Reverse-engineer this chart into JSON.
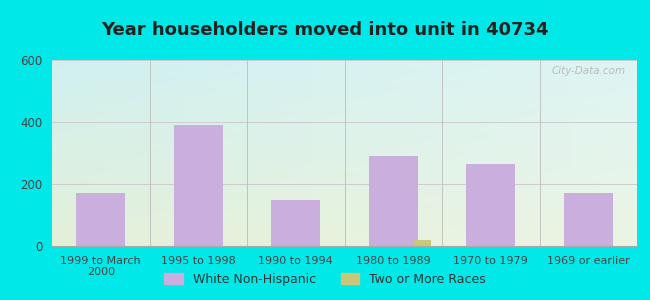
{
  "title": "Year householders moved into unit in 40734",
  "categories": [
    "1999 to March\n2000",
    "1995 to 1998",
    "1990 to 1994",
    "1980 to 1989",
    "1970 to 1979",
    "1969 or earlier"
  ],
  "white_non_hispanic": [
    170,
    390,
    150,
    290,
    265,
    170
  ],
  "two_or_more_races": [
    0,
    0,
    0,
    20,
    0,
    0
  ],
  "two_or_more_races_xoffset": 3,
  "bar_color_white": "#c9aede",
  "bar_color_two": "#c8c87a",
  "background_outer": "#00e8e8",
  "background_plot_top_left": "#cff0f0",
  "background_plot_top_right": "#e8f5f5",
  "background_plot_bottom": "#e4f0d8",
  "ylim": [
    0,
    600
  ],
  "yticks": [
    0,
    200,
    400,
    600
  ],
  "watermark": "City-Data.com",
  "legend_label_white": "White Non-Hispanic",
  "legend_label_two": "Two or More Races",
  "title_fontsize": 13,
  "bar_width": 0.5
}
